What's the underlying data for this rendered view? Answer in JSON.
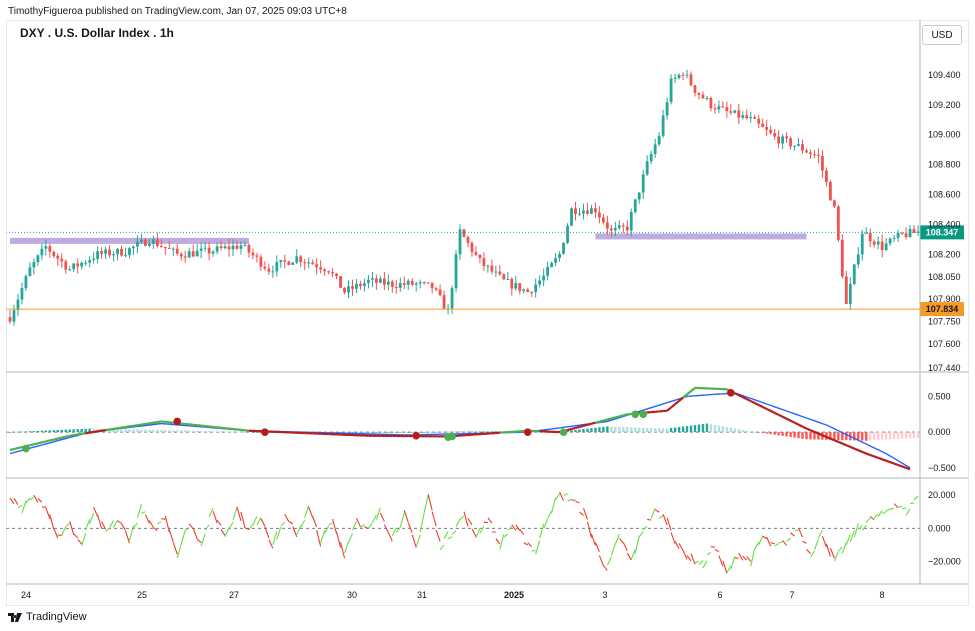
{
  "header": {
    "publisher_line": "TimothyFigueroa published on TradingView.com, Jan 07, 2025 09:03 UTC+8"
  },
  "price_pane": {
    "title": "DXY . U.S. Dollar Index . 1h",
    "currency": "USD",
    "y_ticks": [
      "109.400",
      "109.200",
      "109.000",
      "108.800",
      "108.600",
      "108.400",
      "108.200",
      "108.050",
      "107.900",
      "107.750",
      "107.600",
      "107.440"
    ],
    "last_price_label": "108.347",
    "support_label": "107.834"
  },
  "osc1": {
    "y_ticks": [
      "0.500",
      "0.000",
      "−0.500"
    ]
  },
  "osc2": {
    "y_ticks": [
      "20.000",
      "0.000",
      "−20.000"
    ]
  },
  "x_axis": {
    "labels": [
      "24",
      "25",
      "27",
      "30",
      "31",
      "2025",
      "3",
      "6",
      "7",
      "8"
    ]
  },
  "footer": {
    "logo_text": "TradingView"
  },
  "colors": {
    "up": "#26a69a",
    "down": "#ef5350",
    "zone": "#b39ddb",
    "support": "#f59a24",
    "last_price_bg": "#089981",
    "macd_fast_up": "#4caf50",
    "macd_fast_down": "#b71c1c",
    "macd_signal": "#2962ff",
    "osc_up": "#66dd44",
    "osc_down": "#ef3b2c"
  },
  "chart_data": [
    {
      "type": "candlestick",
      "title": "DXY . U.S. Dollar Index . 1h",
      "x_labels": [
        "24",
        "25",
        "27",
        "30",
        "31",
        "2025",
        "3",
        "6",
        "7",
        "8"
      ],
      "ylim": [
        107.44,
        109.6
      ],
      "last_price": 108.347,
      "horizontal_lines": [
        {
          "value": 107.834,
          "label": "107.834"
        }
      ],
      "zones": [
        {
          "from_bar": 0,
          "to_bar": 60,
          "low": 108.27,
          "high": 108.31
        },
        {
          "from_bar": 147,
          "to_bar": 200,
          "low": 108.3,
          "high": 108.34
        }
      ],
      "anchors": [
        [
          0,
          107.78
        ],
        [
          5,
          108.1
        ],
        [
          9,
          108.25
        ],
        [
          15,
          108.1
        ],
        [
          22,
          108.2
        ],
        [
          29,
          108.22
        ],
        [
          35,
          108.3
        ],
        [
          42,
          108.2
        ],
        [
          50,
          108.22
        ],
        [
          58,
          108.26
        ],
        [
          65,
          108.1
        ],
        [
          72,
          108.18
        ],
        [
          80,
          108.1
        ],
        [
          84,
          107.95
        ],
        [
          90,
          108.02
        ],
        [
          96,
          108.0
        ],
        [
          102,
          108.0
        ],
        [
          106,
          107.98
        ],
        [
          110,
          107.82
        ],
        [
          113,
          108.35
        ],
        [
          118,
          108.15
        ],
        [
          124,
          108.02
        ],
        [
          130,
          107.95
        ],
        [
          134,
          108.05
        ],
        [
          138,
          108.2
        ],
        [
          141,
          108.5
        ],
        [
          147,
          108.5
        ],
        [
          151,
          108.35
        ],
        [
          155,
          108.38
        ],
        [
          160,
          108.8
        ],
        [
          163,
          109.0
        ],
        [
          166,
          109.35
        ],
        [
          169,
          109.42
        ],
        [
          172,
          109.3
        ],
        [
          176,
          109.2
        ],
        [
          180,
          109.15
        ],
        [
          186,
          109.1
        ],
        [
          192,
          108.98
        ],
        [
          198,
          108.92
        ],
        [
          203,
          108.85
        ],
        [
          207,
          108.5
        ],
        [
          210,
          107.86
        ],
        [
          214,
          108.35
        ],
        [
          219,
          108.25
        ],
        [
          224,
          108.33
        ],
        [
          228,
          108.35
        ]
      ]
    },
    {
      "type": "line",
      "ylim": [
        -0.6,
        0.8
      ],
      "series": [
        {
          "anchors": [
            [
              0,
              -0.25
            ],
            [
              15,
              -0.05
            ],
            [
              38,
              0.15
            ],
            [
              60,
              0.02
            ],
            [
              90,
              -0.05
            ],
            [
              110,
              -0.06
            ],
            [
              130,
              0.02
            ],
            [
              138,
              0.0
            ],
            [
              155,
              0.25
            ],
            [
              165,
              0.3
            ],
            [
              172,
              0.62
            ],
            [
              180,
              0.6
            ],
            [
              200,
              0.05
            ],
            [
              215,
              -0.3
            ],
            [
              226,
              -0.52
            ]
          ]
        },
        {
          "anchors": [
            [
              0,
              -0.3
            ],
            [
              20,
              0.0
            ],
            [
              38,
              0.12
            ],
            [
              60,
              0.02
            ],
            [
              100,
              -0.04
            ],
            [
              130,
              0.0
            ],
            [
              150,
              0.15
            ],
            [
              170,
              0.5
            ],
            [
              182,
              0.55
            ],
            [
              205,
              0.1
            ],
            [
              220,
              -0.3
            ],
            [
              226,
              -0.5
            ]
          ]
        }
      ],
      "markers": [
        [
          4,
          -0.23
        ],
        [
          42,
          0.15
        ],
        [
          64,
          0.0
        ],
        [
          102,
          -0.05
        ],
        [
          110,
          -0.07
        ],
        [
          111,
          -0.06
        ],
        [
          130,
          0.0
        ],
        [
          139,
          0.0
        ],
        [
          157,
          0.25
        ],
        [
          159,
          0.25
        ],
        [
          181,
          0.55
        ]
      ],
      "histogram_anchors": [
        [
          0,
          0.0
        ],
        [
          20,
          0.05
        ],
        [
          38,
          0.03
        ],
        [
          60,
          0.0
        ],
        [
          100,
          0.0
        ],
        [
          140,
          0.02
        ],
        [
          150,
          0.08
        ],
        [
          165,
          0.05
        ],
        [
          175,
          0.12
        ],
        [
          185,
          0.02
        ],
        [
          200,
          -0.1
        ],
        [
          215,
          -0.12
        ],
        [
          228,
          -0.08
        ]
      ]
    },
    {
      "type": "line",
      "ylim": [
        -30,
        28
      ],
      "anchors": [
        [
          0,
          20
        ],
        [
          3,
          12
        ],
        [
          6,
          18
        ],
        [
          9,
          15
        ],
        [
          12,
          -5
        ],
        [
          15,
          2
        ],
        [
          18,
          -10
        ],
        [
          21,
          10
        ],
        [
          24,
          -3
        ],
        [
          27,
          5
        ],
        [
          30,
          -6
        ],
        [
          33,
          12
        ],
        [
          36,
          -2
        ],
        [
          39,
          8
        ],
        [
          42,
          -15
        ],
        [
          45,
          3
        ],
        [
          48,
          -8
        ],
        [
          51,
          10
        ],
        [
          54,
          -4
        ],
        [
          57,
          12
        ],
        [
          60,
          -2
        ],
        [
          63,
          8
        ],
        [
          66,
          -10
        ],
        [
          69,
          6
        ],
        [
          72,
          -3
        ],
        [
          75,
          12
        ],
        [
          78,
          -8
        ],
        [
          81,
          4
        ],
        [
          84,
          -15
        ],
        [
          87,
          6
        ],
        [
          90,
          -2
        ],
        [
          93,
          10
        ],
        [
          96,
          -5
        ],
        [
          99,
          8
        ],
        [
          102,
          -12
        ],
        [
          105,
          20
        ],
        [
          108,
          -10
        ],
        [
          111,
          -2
        ],
        [
          114,
          8
        ],
        [
          117,
          -4
        ],
        [
          120,
          6
        ],
        [
          123,
          -10
        ],
        [
          126,
          2
        ],
        [
          129,
          -6
        ],
        [
          132,
          -14
        ],
        [
          135,
          8
        ],
        [
          138,
          20
        ],
        [
          141,
          18
        ],
        [
          144,
          10
        ],
        [
          147,
          -10
        ],
        [
          150,
          -25
        ],
        [
          153,
          -5
        ],
        [
          156,
          -20
        ],
        [
          159,
          0
        ],
        [
          162,
          10
        ],
        [
          165,
          5
        ],
        [
          168,
          -12
        ],
        [
          171,
          -18
        ],
        [
          174,
          -22
        ],
        [
          177,
          -10
        ],
        [
          180,
          -28
        ],
        [
          183,
          -15
        ],
        [
          186,
          -20
        ],
        [
          189,
          -5
        ],
        [
          192,
          -12
        ],
        [
          195,
          -8
        ],
        [
          198,
          0
        ],
        [
          201,
          -15
        ],
        [
          204,
          -3
        ],
        [
          207,
          -20
        ],
        [
          210,
          -10
        ],
        [
          213,
          0
        ],
        [
          216,
          5
        ],
        [
          219,
          8
        ],
        [
          222,
          15
        ],
        [
          225,
          10
        ],
        [
          228,
          20
        ]
      ]
    }
  ]
}
